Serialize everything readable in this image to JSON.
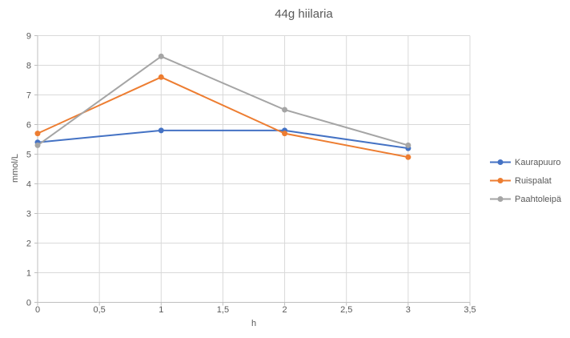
{
  "chart_data": {
    "type": "line",
    "title": "44g hiilaria",
    "xlabel": "h",
    "ylabel": "mmol/L",
    "x": [
      0,
      1,
      2,
      3
    ],
    "series": [
      {
        "name": "Kaurapuuro",
        "color": "#4472C4",
        "values": [
          5.4,
          5.8,
          5.8,
          5.2
        ]
      },
      {
        "name": "Ruispalat",
        "color": "#ED7D31",
        "values": [
          5.7,
          7.6,
          5.7,
          4.9
        ]
      },
      {
        "name": "Paahtoleipä",
        "color": "#A5A5A5",
        "values": [
          5.3,
          8.3,
          6.5,
          5.3
        ]
      }
    ],
    "xlim": [
      0,
      3.5
    ],
    "ylim": [
      0,
      9
    ],
    "x_tick_step": 0.5,
    "y_tick_step": 1,
    "x_tick_labels": [
      "0",
      "0,5",
      "1",
      "1,5",
      "2",
      "2,5",
      "3",
      "3,5"
    ],
    "y_tick_labels": [
      "0",
      "1",
      "2",
      "3",
      "4",
      "5",
      "6",
      "7",
      "8",
      "9"
    ],
    "grid": true,
    "legend_position": "right",
    "marker": "circle"
  },
  "colors": {
    "text": "#595959",
    "gridline": "#D9D9D9",
    "axis": "#BFBFBF",
    "background": "#FFFFFF"
  }
}
